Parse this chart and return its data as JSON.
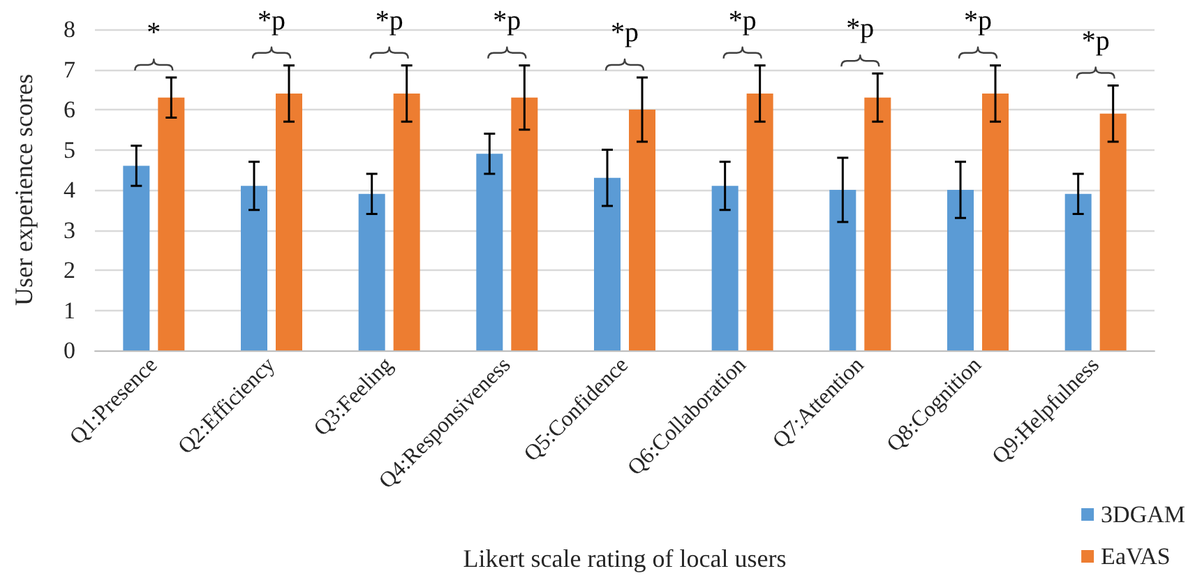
{
  "chart_data": {
    "type": "bar",
    "xlabel": "Likert scale rating of local users",
    "ylabel": "User experience scores",
    "categories": [
      "Q1:Presence",
      "Q2:Efficiency",
      "Q3:Feeling",
      "Q4:Responsiveness",
      "Q5:Confidence",
      "Q6:Collaboration",
      "Q7:Attention",
      "Q8:Cognition",
      "Q9:Helpfulness"
    ],
    "series": [
      {
        "name": "3DGAM",
        "color": "#5b9bd5",
        "values": [
          4.6,
          4.1,
          3.9,
          4.9,
          4.3,
          4.1,
          4.0,
          4.0,
          3.9
        ],
        "errors": [
          0.5,
          0.6,
          0.5,
          0.5,
          0.7,
          0.6,
          0.8,
          0.7,
          0.5
        ]
      },
      {
        "name": "EaVAS",
        "color": "#ed7d31",
        "values": [
          6.3,
          6.4,
          6.4,
          6.3,
          6.0,
          6.4,
          6.3,
          6.4,
          5.9
        ],
        "errors": [
          0.5,
          0.7,
          0.7,
          0.8,
          0.8,
          0.7,
          0.6,
          0.7,
          0.7
        ]
      }
    ],
    "ylim": [
      0,
      8
    ],
    "yticks": [
      0,
      1,
      2,
      3,
      4,
      5,
      6,
      7,
      8
    ],
    "grid": "y",
    "legend": "bottom right",
    "annotations": [
      "*",
      "*p",
      "*p",
      "*p",
      "*p",
      "*p",
      "*p",
      "*p",
      "*p"
    ]
  }
}
